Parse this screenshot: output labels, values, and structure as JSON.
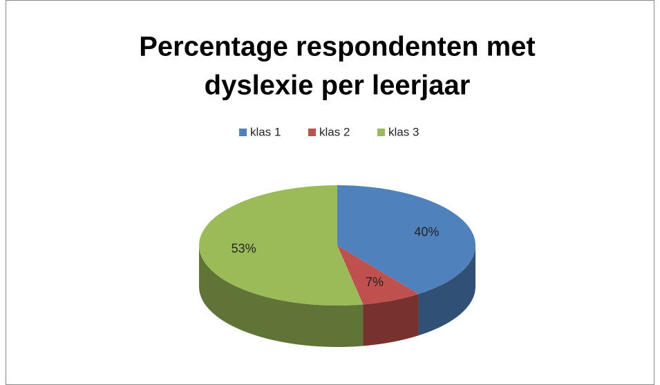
{
  "chart_data": {
    "type": "pie3d",
    "title": [
      "Percentage respondenten met",
      "dyslexie per leerjaar"
    ],
    "categories": [
      "klas 1",
      "klas 2",
      "klas 3"
    ],
    "values": [
      40,
      7,
      53
    ],
    "value_labels": [
      "40%",
      "7%",
      "53%"
    ],
    "colors": [
      "#4f81bd",
      "#c0504d",
      "#9bbb59"
    ],
    "legend": "top"
  }
}
